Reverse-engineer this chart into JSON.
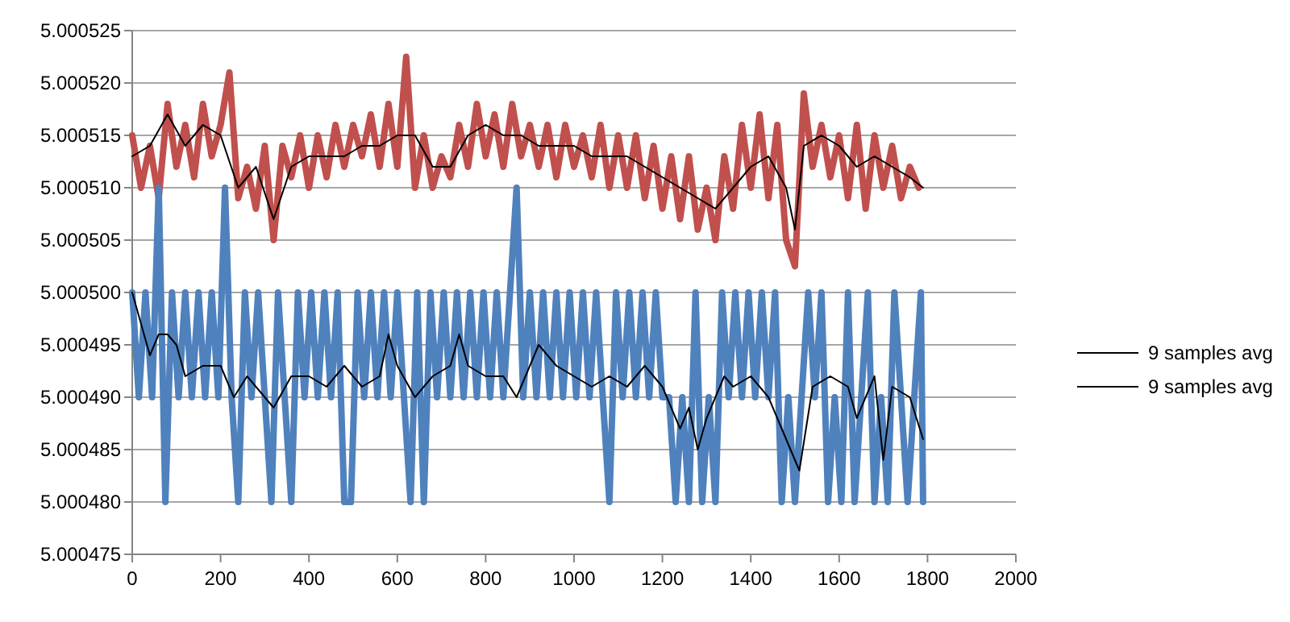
{
  "chart_data": {
    "type": "line",
    "xlim": [
      0,
      2000
    ],
    "xticks": [
      0,
      200,
      400,
      600,
      800,
      1000,
      1200,
      1400,
      1600,
      1800,
      2000
    ],
    "ylim": [
      5.000475,
      5.000525
    ],
    "yticks": [
      5.000475,
      {
        "value": 5.00048,
        "label": "5.000480"
      },
      5.000485,
      {
        "value": 5.00049,
        "label": "5.000490"
      },
      5.000495,
      {
        "value": 5.0005,
        "label": "5.000500"
      },
      5.000505,
      {
        "value": 5.00051,
        "label": "5.000510"
      },
      5.000515,
      {
        "value": 5.00052,
        "label": "5.000520"
      },
      5.000525
    ],
    "grid": "y",
    "legend": "right",
    "marker": "none",
    "line_style": "solid",
    "series": [
      {
        "color": "#c0504d",
        "x": [
          0,
          20,
          40,
          60,
          80,
          100,
          120,
          140,
          160,
          180,
          200,
          220,
          240,
          260,
          280,
          300,
          320,
          340,
          360,
          380,
          400,
          420,
          440,
          460,
          480,
          500,
          520,
          540,
          560,
          580,
          600,
          620,
          640,
          660,
          680,
          700,
          720,
          740,
          760,
          780,
          800,
          820,
          840,
          860,
          880,
          900,
          920,
          940,
          960,
          980,
          1000,
          1020,
          1040,
          1060,
          1080,
          1100,
          1120,
          1140,
          1160,
          1180,
          1200,
          1220,
          1240,
          1260,
          1280,
          1300,
          1320,
          1340,
          1360,
          1380,
          1400,
          1420,
          1440,
          1460,
          1480,
          1500,
          1520,
          1540,
          1560,
          1580,
          1600,
          1620,
          1640,
          1660,
          1680,
          1700,
          1720,
          1740,
          1760,
          1780
        ],
        "values": [
          5.000515,
          5.00051,
          5.000514,
          5.000509,
          5.000518,
          5.000512,
          5.000516,
          5.000511,
          5.000518,
          5.000513,
          5.000516,
          5.000521,
          5.000509,
          5.000512,
          5.000508,
          5.000514,
          5.000505,
          5.000514,
          5.000511,
          5.000515,
          5.00051,
          5.000515,
          5.000511,
          5.000516,
          5.000512,
          5.000516,
          5.000513,
          5.000517,
          5.000512,
          5.000518,
          5.000512,
          5.0005225,
          5.00051,
          5.000515,
          5.00051,
          5.000513,
          5.000511,
          5.000516,
          5.000512,
          5.000518,
          5.000513,
          5.000517,
          5.000512,
          5.000518,
          5.000513,
          5.000516,
          5.000512,
          5.000516,
          5.000511,
          5.000516,
          5.000512,
          5.000515,
          5.000511,
          5.000516,
          5.00051,
          5.000515,
          5.00051,
          5.000515,
          5.000509,
          5.000514,
          5.000508,
          5.000513,
          5.000507,
          5.000513,
          5.000506,
          5.00051,
          5.000505,
          5.000513,
          5.000508,
          5.000516,
          5.00051,
          5.000517,
          5.000509,
          5.000516,
          5.000505,
          5.0005025,
          5.000519,
          5.000512,
          5.000516,
          5.000511,
          5.000515,
          5.000509,
          5.000516,
          5.000508,
          5.000515,
          5.00051,
          5.000514,
          5.000509,
          5.000512,
          5.00051
        ]
      },
      {
        "color": "#4f81bd",
        "x": [
          0,
          15,
          30,
          45,
          60,
          75,
          90,
          105,
          120,
          135,
          150,
          165,
          180,
          195,
          210,
          225,
          240,
          255,
          270,
          285,
          300,
          315,
          330,
          345,
          360,
          375,
          390,
          405,
          420,
          435,
          450,
          465,
          480,
          495,
          510,
          525,
          540,
          555,
          570,
          585,
          600,
          615,
          630,
          645,
          660,
          675,
          690,
          705,
          720,
          735,
          750,
          765,
          780,
          795,
          810,
          825,
          840,
          855,
          870,
          885,
          900,
          915,
          930,
          945,
          960,
          975,
          990,
          1005,
          1020,
          1035,
          1050,
          1065,
          1080,
          1095,
          1110,
          1125,
          1140,
          1155,
          1170,
          1185,
          1200,
          1215,
          1230,
          1245,
          1260,
          1275,
          1290,
          1305,
          1320,
          1335,
          1350,
          1365,
          1380,
          1395,
          1410,
          1425,
          1440,
          1455,
          1470,
          1485,
          1500,
          1515,
          1530,
          1545,
          1560,
          1575,
          1590,
          1605,
          1620,
          1635,
          1650,
          1665,
          1680,
          1695,
          1710,
          1725,
          1740,
          1755,
          1770,
          1785,
          1790
        ],
        "values": [
          5.0005,
          5.00049,
          5.0005,
          5.00049,
          5.00051,
          5.00048,
          5.0005,
          5.00049,
          5.0005,
          5.00049,
          5.0005,
          5.00049,
          5.0005,
          5.00049,
          5.00051,
          5.00049,
          5.00048,
          5.0005,
          5.00049,
          5.0005,
          5.00049,
          5.00048,
          5.0005,
          5.00049,
          5.00048,
          5.0005,
          5.00049,
          5.0005,
          5.00049,
          5.0005,
          5.00049,
          5.0005,
          5.00048,
          5.00048,
          5.0005,
          5.00049,
          5.0005,
          5.00049,
          5.0005,
          5.00049,
          5.0005,
          5.00049,
          5.00048,
          5.0005,
          5.00048,
          5.0005,
          5.00049,
          5.0005,
          5.00049,
          5.0005,
          5.00049,
          5.0005,
          5.00049,
          5.0005,
          5.00049,
          5.0005,
          5.00049,
          5.0005,
          5.00051,
          5.00049,
          5.0005,
          5.00049,
          5.0005,
          5.00049,
          5.0005,
          5.00049,
          5.0005,
          5.00049,
          5.0005,
          5.00049,
          5.0005,
          5.00049,
          5.00048,
          5.0005,
          5.00049,
          5.0005,
          5.00049,
          5.0005,
          5.00049,
          5.0005,
          5.00049,
          5.00049,
          5.00048,
          5.00049,
          5.00048,
          5.0005,
          5.00048,
          5.00049,
          5.00048,
          5.0005,
          5.00049,
          5.0005,
          5.00049,
          5.0005,
          5.00049,
          5.0005,
          5.00049,
          5.0005,
          5.00048,
          5.00049,
          5.00048,
          5.00049,
          5.0005,
          5.00049,
          5.0005,
          5.00048,
          5.00049,
          5.00048,
          5.0005,
          5.00048,
          5.00049,
          5.0005,
          5.00048,
          5.00049,
          5.00048,
          5.0005,
          5.00049,
          5.00048,
          5.00049,
          5.0005,
          5.00048
        ]
      },
      {
        "name": "9 samples avg",
        "color": "#000000",
        "x": [
          0,
          40,
          80,
          120,
          160,
          200,
          240,
          280,
          320,
          360,
          400,
          440,
          480,
          520,
          560,
          600,
          640,
          680,
          720,
          760,
          800,
          840,
          880,
          920,
          960,
          1000,
          1040,
          1080,
          1120,
          1160,
          1200,
          1240,
          1280,
          1320,
          1360,
          1400,
          1440,
          1480,
          1500,
          1520,
          1560,
          1600,
          1640,
          1680,
          1720,
          1760,
          1790
        ],
        "values": [
          5.000513,
          5.000514,
          5.000517,
          5.000514,
          5.000516,
          5.000515,
          5.00051,
          5.000512,
          5.000507,
          5.000512,
          5.000513,
          5.000513,
          5.000513,
          5.000514,
          5.000514,
          5.000515,
          5.000515,
          5.000512,
          5.000512,
          5.000515,
          5.000516,
          5.000515,
          5.000515,
          5.000514,
          5.000514,
          5.000514,
          5.000513,
          5.000513,
          5.000513,
          5.000512,
          5.000511,
          5.00051,
          5.000509,
          5.000508,
          5.00051,
          5.000512,
          5.000513,
          5.00051,
          5.000506,
          5.000514,
          5.000515,
          5.000514,
          5.000512,
          5.000513,
          5.000512,
          5.000511,
          5.00051
        ]
      },
      {
        "name": "9 samples avg",
        "color": "#000000",
        "x": [
          0,
          40,
          60,
          80,
          100,
          120,
          160,
          200,
          230,
          260,
          300,
          320,
          360,
          400,
          440,
          480,
          520,
          560,
          580,
          600,
          640,
          680,
          720,
          740,
          760,
          800,
          840,
          870,
          900,
          920,
          960,
          1000,
          1040,
          1080,
          1120,
          1160,
          1200,
          1240,
          1260,
          1280,
          1300,
          1340,
          1360,
          1400,
          1440,
          1480,
          1510,
          1540,
          1580,
          1620,
          1640,
          1680,
          1700,
          1720,
          1760,
          1790
        ],
        "values": [
          5.0005,
          5.000494,
          5.000496,
          5.000496,
          5.000495,
          5.000492,
          5.000493,
          5.000493,
          5.00049,
          5.000492,
          5.00049,
          5.000489,
          5.000492,
          5.000492,
          5.000491,
          5.000493,
          5.000491,
          5.000492,
          5.000496,
          5.000493,
          5.00049,
          5.000492,
          5.000493,
          5.000496,
          5.000493,
          5.000492,
          5.000492,
          5.00049,
          5.000493,
          5.000495,
          5.000493,
          5.000492,
          5.000491,
          5.000492,
          5.000491,
          5.000493,
          5.000491,
          5.000487,
          5.000489,
          5.000485,
          5.000488,
          5.000492,
          5.000491,
          5.000492,
          5.00049,
          5.000486,
          5.000483,
          5.000491,
          5.000492,
          5.000491,
          5.000488,
          5.000492,
          5.000484,
          5.000491,
          5.00049,
          5.000486
        ]
      }
    ]
  }
}
